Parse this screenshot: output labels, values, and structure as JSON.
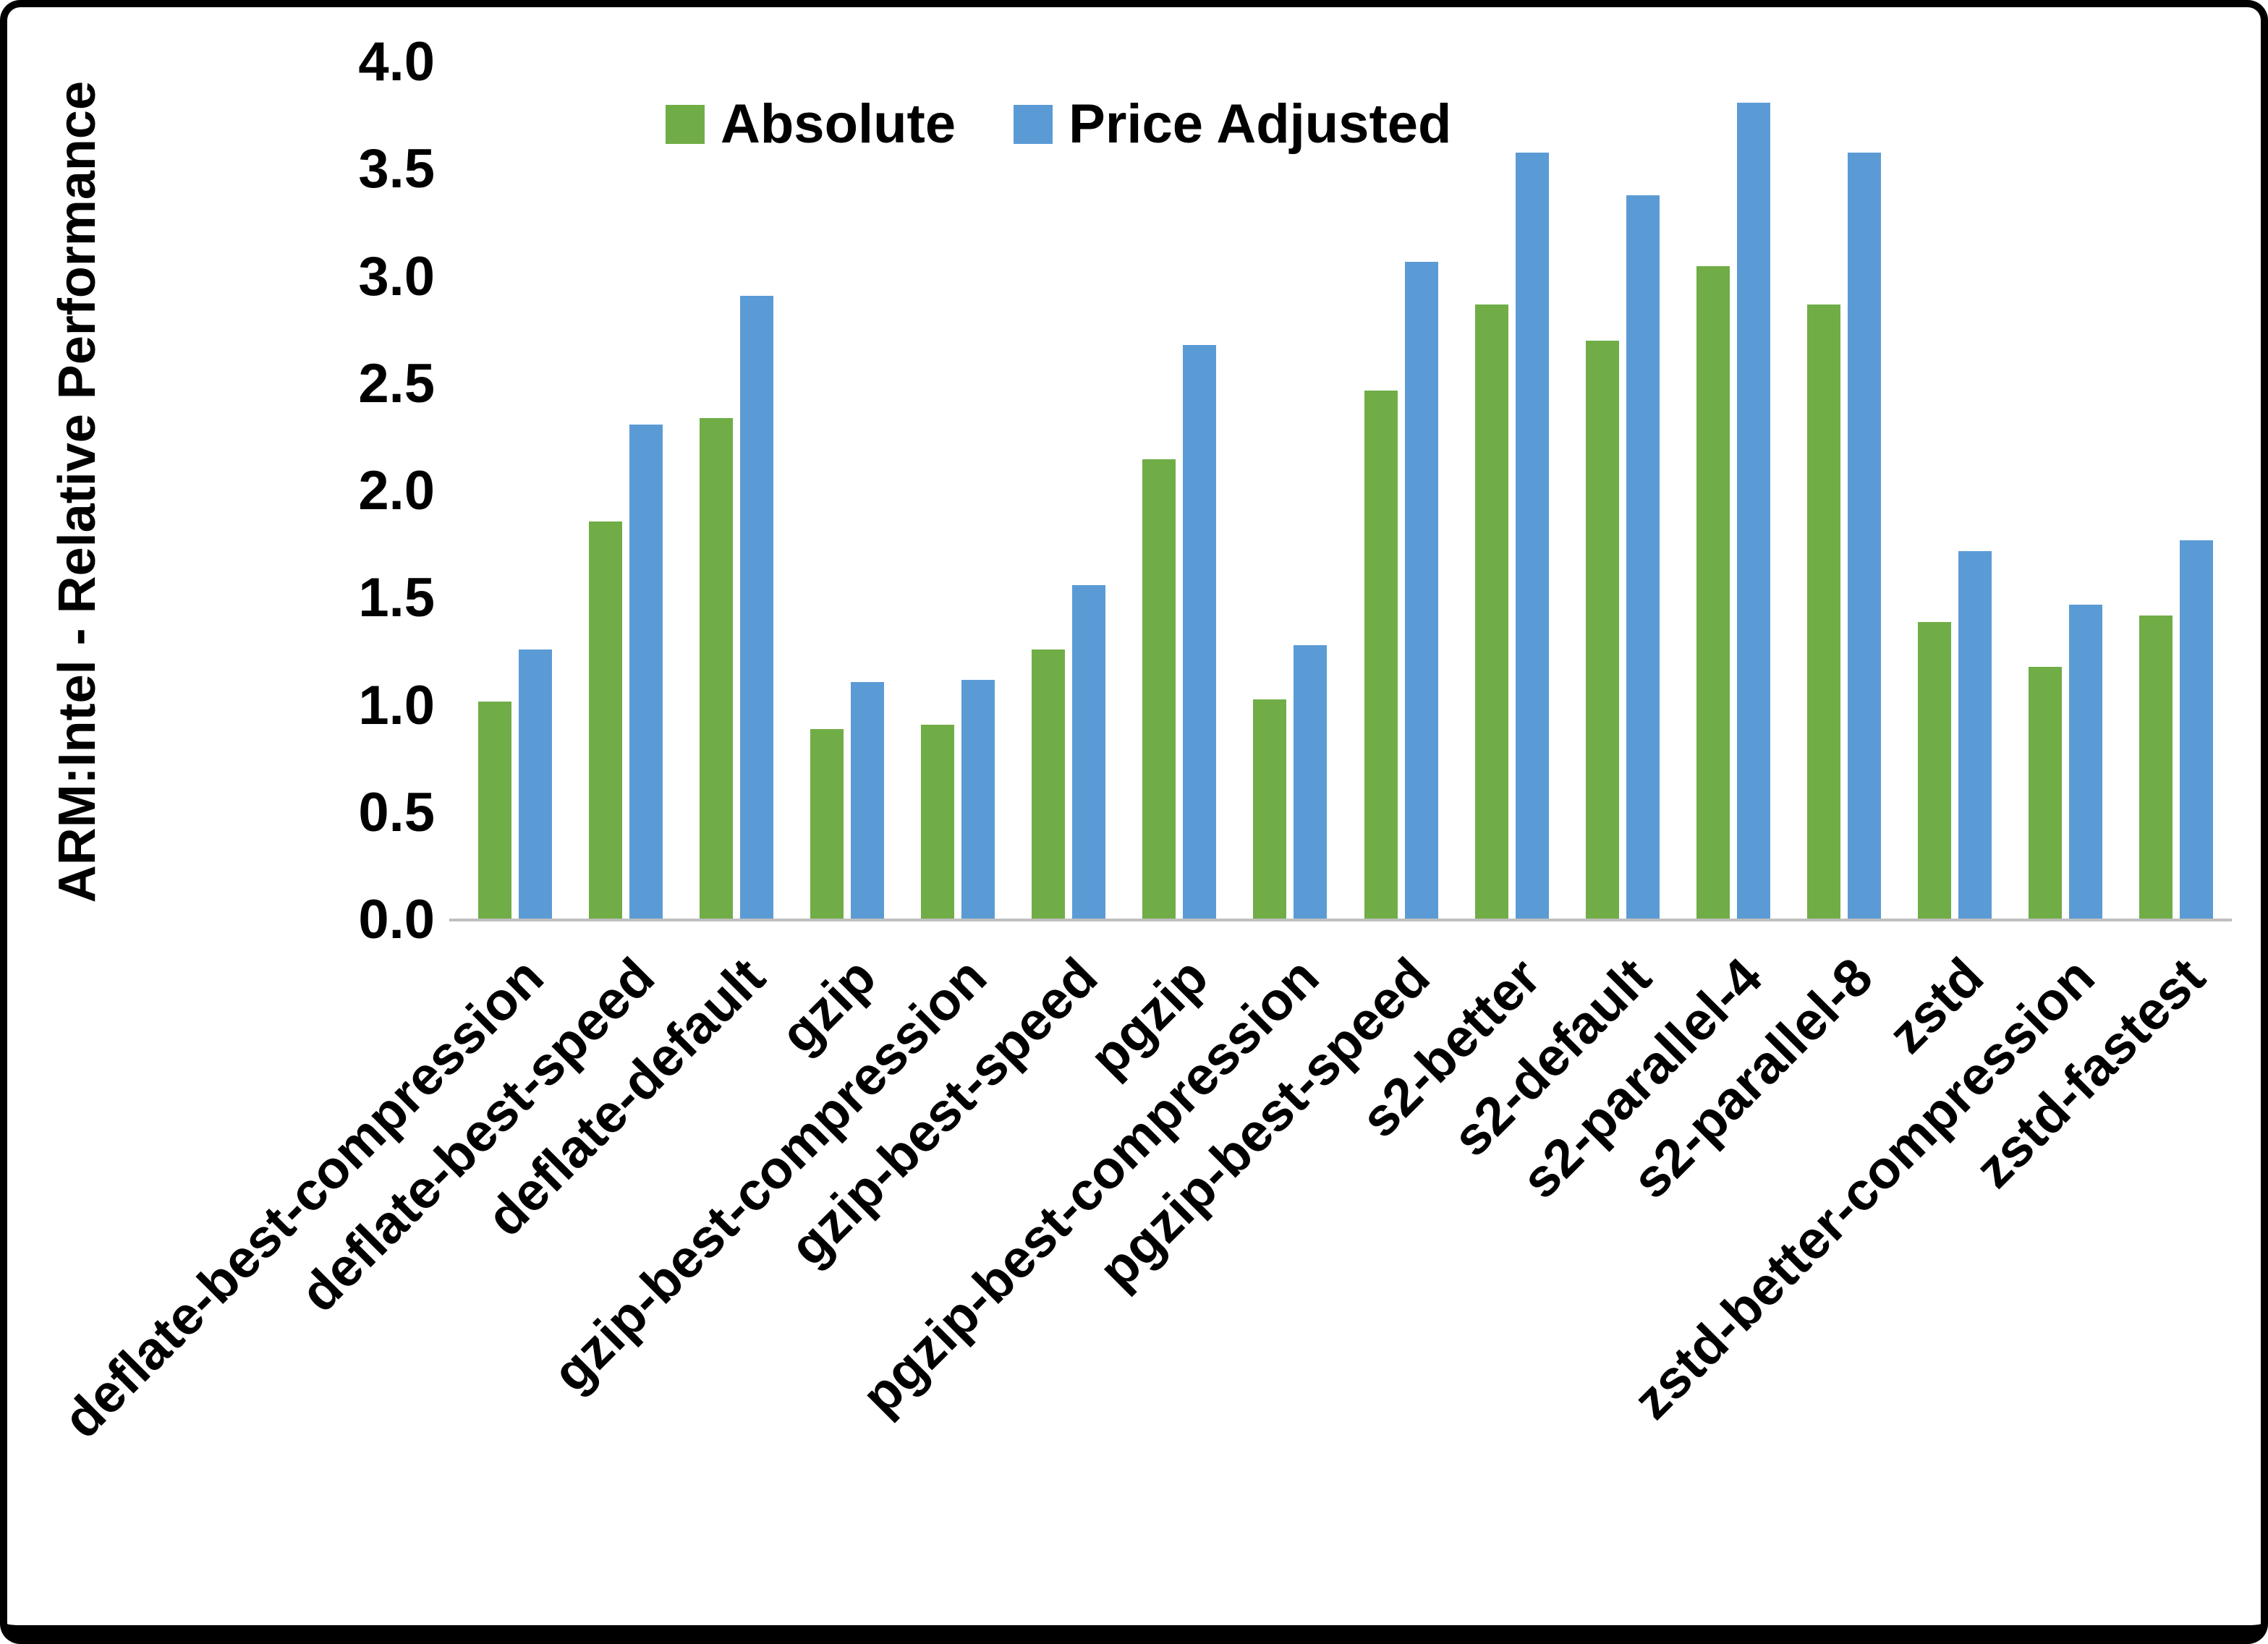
{
  "chart_data": {
    "type": "bar",
    "title": "",
    "xlabel": "",
    "ylabel": "ARM:Intel - Relative Performance",
    "ylim": [
      0.0,
      4.0
    ],
    "ytick_step": 0.5,
    "yticks": [
      "0.0",
      "0.5",
      "1.0",
      "1.5",
      "2.0",
      "2.5",
      "3.0",
      "3.5",
      "4.0"
    ],
    "grid": false,
    "legend_position": "top",
    "axis_line_color": "#bfbfbf",
    "categories": [
      "deflate-best-compression",
      "deflate-best-speed",
      "deflate-default",
      "gzip",
      "gzip-best-compression",
      "gzip-best-speed",
      "pgzip",
      "pgzip-best-compression",
      "pgzip-best-speed",
      "s2-better",
      "s2-default",
      "s2-parallel-4",
      "s2-parallel-8",
      "zstd",
      "zstd-better-compression",
      "zstd-fastest"
    ],
    "series": [
      {
        "name": "Absolute",
        "color": "#70AD47",
        "values": [
          1.02,
          1.86,
          2.34,
          0.89,
          0.91,
          1.26,
          2.15,
          1.03,
          2.47,
          2.87,
          2.7,
          3.05,
          2.87,
          1.39,
          1.18,
          1.42
        ]
      },
      {
        "name": "Price Adjusted",
        "color": "#5B9BD5",
        "values": [
          1.26,
          2.31,
          2.91,
          1.11,
          1.12,
          1.56,
          2.68,
          1.28,
          3.07,
          3.58,
          3.38,
          3.81,
          3.58,
          1.72,
          1.47,
          1.77
        ]
      }
    ]
  }
}
